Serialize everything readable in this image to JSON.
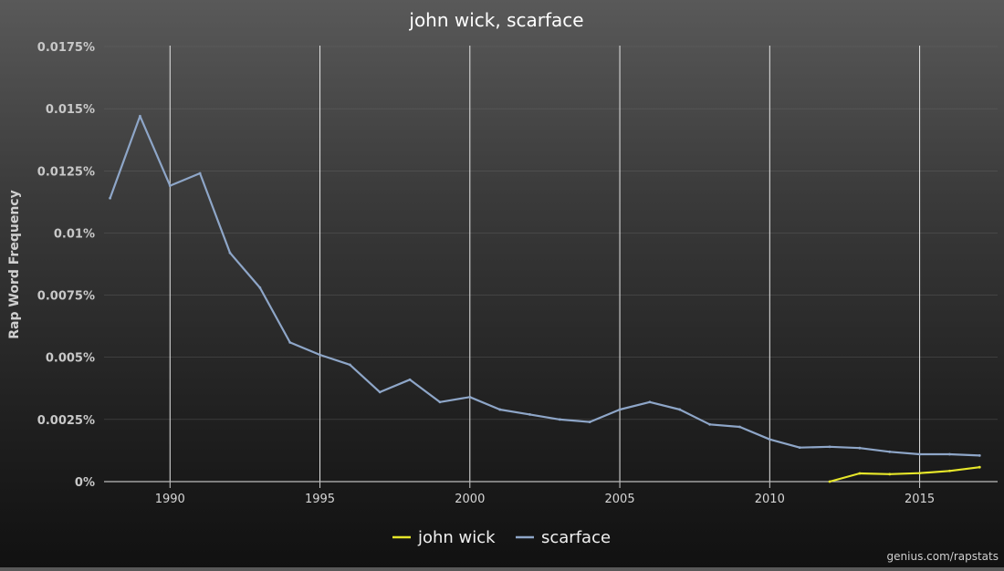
{
  "chart_data": {
    "type": "line",
    "title": "john wick, scarface",
    "ylabel": "Rap Word Frequency",
    "xlabel": "",
    "xlim": [
      1987.8,
      2017.6
    ],
    "ylim": [
      0,
      0.0175
    ],
    "x_ticks": [
      1990,
      1995,
      2000,
      2005,
      2010,
      2015
    ],
    "x_tick_labels": [
      "1990",
      "1995",
      "2000",
      "2005",
      "2010",
      "2015"
    ],
    "y_ticks": [
      0,
      0.0025,
      0.005,
      0.0075,
      0.01,
      0.0125,
      0.015,
      0.0175
    ],
    "y_tick_labels": [
      "0%",
      "0.0025%",
      "0.005%",
      "0.0075%",
      "0.01%",
      "0.0125%",
      "0.015%",
      "0.0175%"
    ],
    "grid": "vertical",
    "legend_position": "bottom-center",
    "series": [
      {
        "name": "john wick",
        "color": "#e6e62a",
        "x": [
          2012,
          2013,
          2014,
          2015,
          2016,
          2017
        ],
        "values": [
          0.0,
          0.00033,
          0.0003,
          0.00034,
          0.00043,
          0.00058
        ]
      },
      {
        "name": "scarface",
        "color": "#8ea6c8",
        "x": [
          1988,
          1989,
          1990,
          1991,
          1992,
          1993,
          1994,
          1995,
          1996,
          1997,
          1998,
          1999,
          2000,
          2001,
          2002,
          2003,
          2004,
          2005,
          2006,
          2007,
          2008,
          2009,
          2010,
          2011,
          2012,
          2013,
          2014,
          2015,
          2016,
          2017
        ],
        "values": [
          0.0114,
          0.0147,
          0.0119,
          0.0124,
          0.0092,
          0.0078,
          0.0056,
          0.0051,
          0.0047,
          0.0036,
          0.0041,
          0.0032,
          0.0034,
          0.0029,
          0.0027,
          0.0025,
          0.0024,
          0.0029,
          0.0032,
          0.0029,
          0.0023,
          0.0022,
          0.0017,
          0.00137,
          0.0014,
          0.00135,
          0.0012,
          0.0011,
          0.0011,
          0.00105
        ]
      }
    ]
  },
  "footer": {
    "credit": "genius.com/rapstats"
  }
}
